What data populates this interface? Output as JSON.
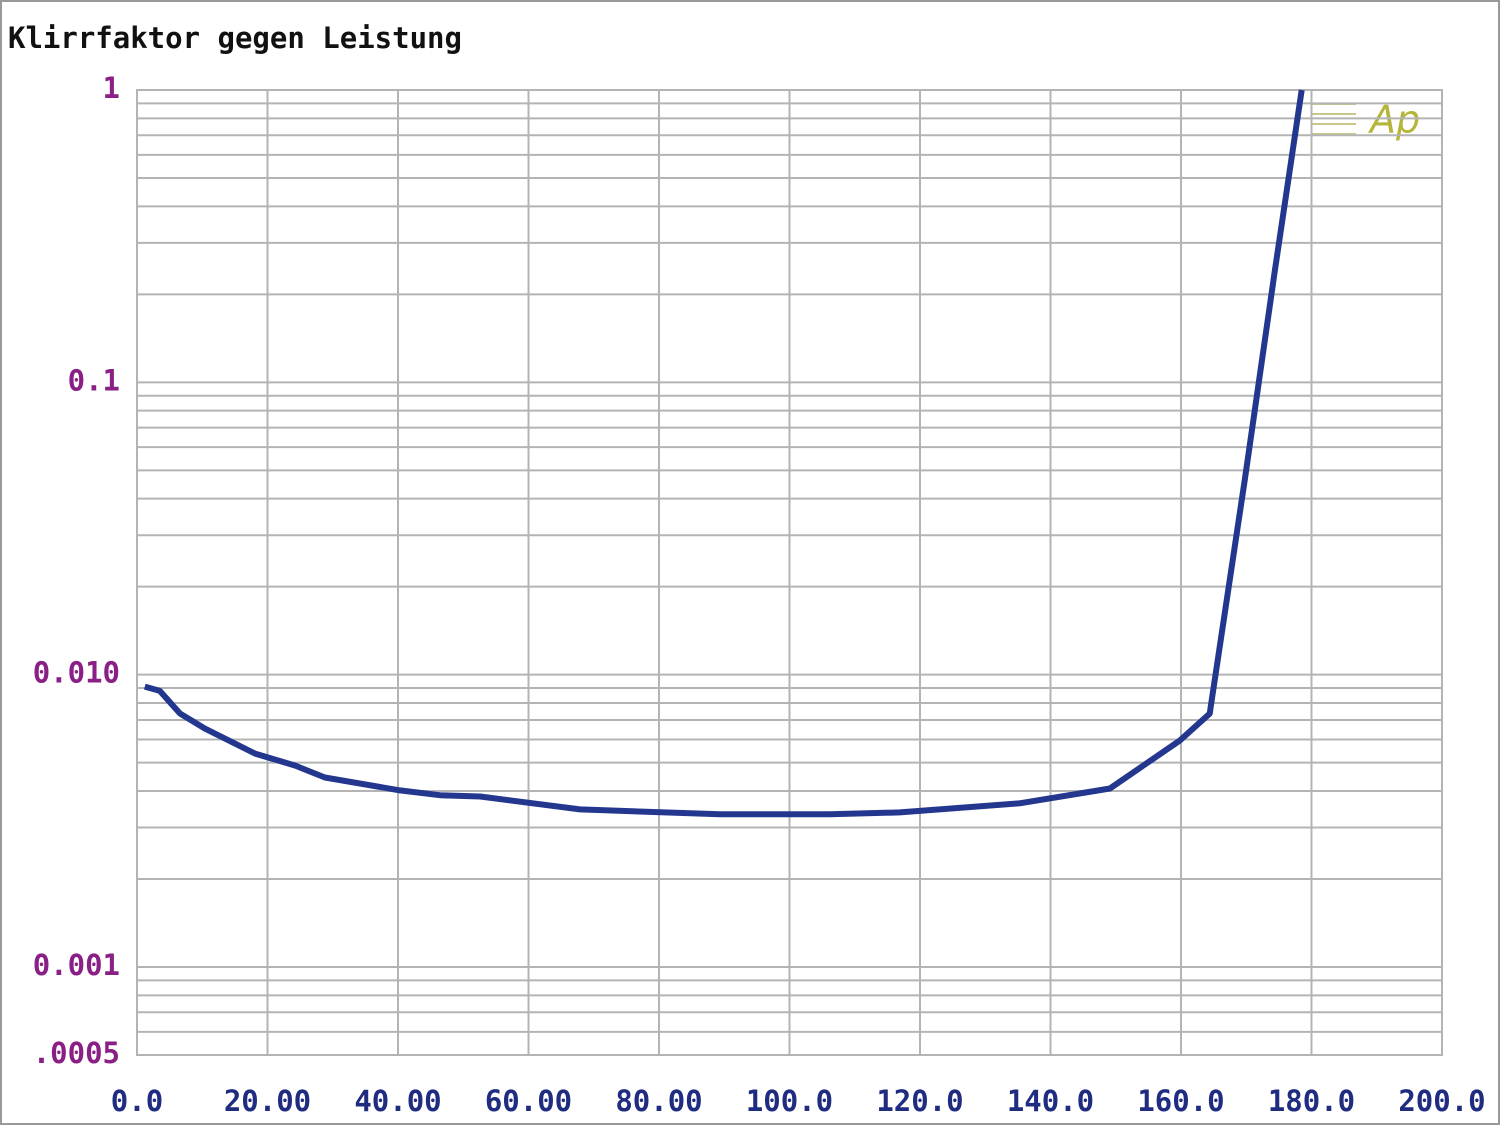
{
  "chart_data": {
    "type": "line",
    "title": "Klirrfaktor gegen Leistung",
    "logo": "Ap",
    "x": [
      1.2,
      3.5,
      6.6,
      10.4,
      18.1,
      24.2,
      28.8,
      40.3,
      46.4,
      52.6,
      67.9,
      89.3,
      106.2,
      116.9,
      135.3,
      149.1,
      159.8,
      164.4,
      169.8,
      174.4,
      178.5
    ],
    "values": [
      0.0091,
      0.0088,
      0.00736,
      0.00654,
      0.00537,
      0.00489,
      0.00445,
      0.00402,
      0.00387,
      0.00383,
      0.00346,
      0.00333,
      0.00333,
      0.00338,
      0.00363,
      0.00408,
      0.00595,
      0.00736,
      0.0467,
      0.243,
      1.0
    ],
    "color": "#24378f",
    "xlim": [
      0,
      200
    ],
    "xticks": [
      {
        "value": 0,
        "label": "0.0"
      },
      {
        "value": 20,
        "label": "20.00"
      },
      {
        "value": 40,
        "label": "40.00"
      },
      {
        "value": 60,
        "label": "60.00"
      },
      {
        "value": 80,
        "label": "80.00"
      },
      {
        "value": 100,
        "label": "100.0"
      },
      {
        "value": 120,
        "label": "120.0"
      },
      {
        "value": 140,
        "label": "140.0"
      },
      {
        "value": 160,
        "label": "160.0"
      },
      {
        "value": 180,
        "label": "180.0"
      },
      {
        "value": 200,
        "label": "200.0"
      }
    ],
    "ylim": [
      0.0005,
      1
    ],
    "yscale": "log",
    "yticks": [
      1,
      0.1,
      {
        "value": 0.01,
        "label": "0.010"
      },
      0.001,
      {
        "value": 0.0005,
        "label": ".0005"
      }
    ],
    "y_minor_gridlines": [
      0.0006,
      0.0007,
      0.0008,
      0.0009,
      0.002,
      0.003,
      0.004,
      0.005,
      0.006,
      0.007,
      0.008,
      0.009,
      0.02,
      0.03,
      0.04,
      0.05,
      0.06,
      0.07,
      0.08,
      0.09,
      0.2,
      0.3,
      0.4,
      0.5,
      0.6,
      0.7,
      0.8,
      0.9
    ],
    "grid": true
  }
}
